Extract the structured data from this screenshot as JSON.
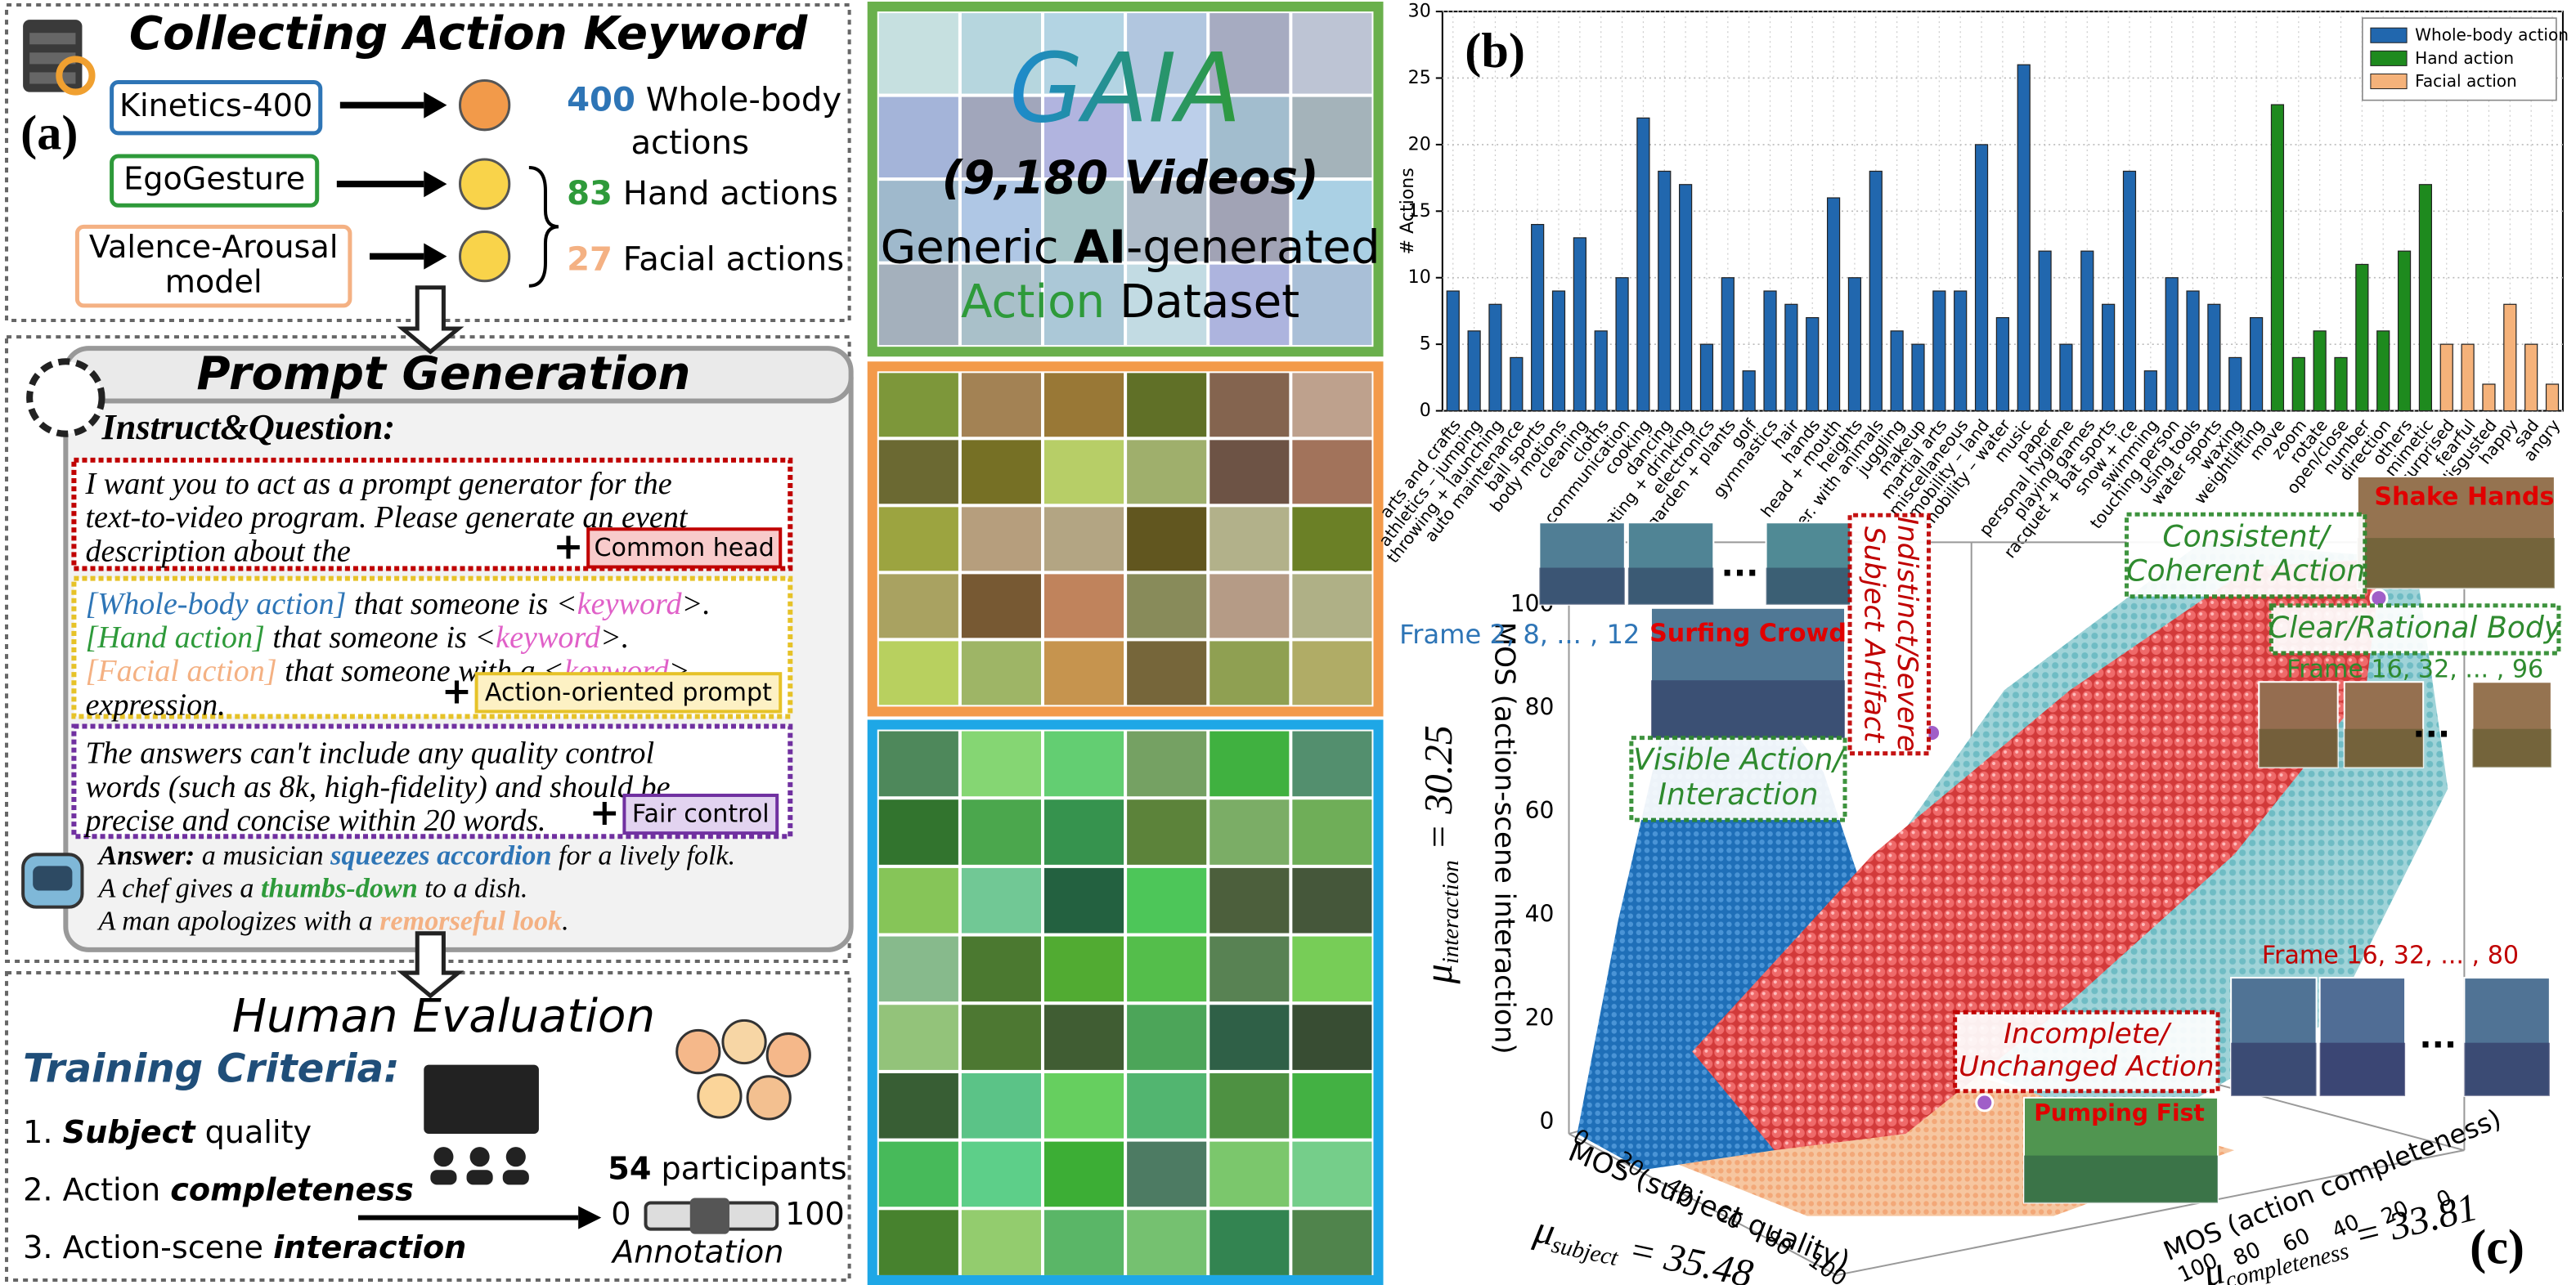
{
  "panel_a": {
    "label": "(a)",
    "collect": {
      "title": "Collecting Action Keyword",
      "colors": [
        "#2e75b6",
        "#2e9a3a",
        "#f4b183"
      ],
      "sources": [
        {
          "lines": [
            "Kinetics-400"
          ]
        },
        {
          "lines": [
            "EgoGesture"
          ]
        },
        {
          "lines": [
            "Valence-Arousal",
            "model"
          ]
        }
      ],
      "counts": [
        {
          "number": 400,
          "lines": [
            "Whole-body",
            "actions"
          ]
        },
        {
          "number": 83,
          "lines": [
            "Hand actions"
          ]
        },
        {
          "number": 27,
          "lines": [
            "Facial actions"
          ]
        }
      ]
    },
    "prompt": {
      "title": "Prompt Generation",
      "instruct": "Instruct&Question:",
      "blocks": [
        {
          "color": "#c00000",
          "tag_fill": "#f8cbcb",
          "tag": "Common head",
          "lines": [
            [
              {
                "text": "I want you to act as a prompt generator for the"
              }
            ],
            [
              {
                "text": "text-to-video program. Please generate an event"
              }
            ],
            [
              {
                "text": "description about the"
              }
            ]
          ]
        },
        {
          "color": "#e6c228",
          "tag_fill": "#fdf1c4",
          "tag": "Action-oriented prompt",
          "lines": [
            [
              {
                "text": "[Whole-body action]",
                "color": "#2e75b6"
              },
              {
                "text": " that someone is <"
              },
              {
                "text": "keyword",
                "color": "#e060c8"
              },
              {
                "text": ">."
              }
            ],
            [
              {
                "text": "[Hand action]",
                "color": "#2e9a3a"
              },
              {
                "text": " that someone is <"
              },
              {
                "text": "keyword",
                "color": "#e060c8"
              },
              {
                "text": ">."
              }
            ],
            [
              {
                "text": "[Facial action]",
                "color": "#f4b183"
              },
              {
                "text": " that someone with a <"
              },
              {
                "text": "keyword",
                "color": "#e060c8"
              },
              {
                "text": ">"
              }
            ],
            [
              {
                "text": "expression."
              }
            ]
          ]
        },
        {
          "color": "#7030a0",
          "tag_fill": "#e2d3f0",
          "tag": "Fair control",
          "lines": [
            [
              {
                "text": "The answers can't include any quality control"
              }
            ],
            [
              {
                "text": "words (such as 8k, high-fidelity) and should be"
              }
            ],
            [
              {
                "text": "precise and concise within 20 words."
              }
            ]
          ]
        }
      ],
      "answer": [
        [
          {
            "text": "Answer:",
            "bold": true
          },
          {
            "text": " a musician "
          },
          {
            "text": "squeezes accordion",
            "color": "#2e75b6",
            "bold": true
          },
          {
            "text": " for a lively folk."
          }
        ],
        [
          {
            "text": "A chef gives a "
          },
          {
            "text": "thumbs-down",
            "color": "#2e9a3a",
            "bold": true
          },
          {
            "text": " to a dish."
          }
        ],
        [
          {
            "text": "A man apologizes with a "
          },
          {
            "text": "remorseful look",
            "color": "#f4b183",
            "bold": true
          },
          {
            "text": "."
          }
        ]
      ]
    },
    "human": {
      "title": "Human Evaluation",
      "criteria_title": "Training Criteria:",
      "criteria": [
        [
          {
            "text": "1. "
          },
          {
            "text": "Subject",
            "bold": true,
            "italic": true
          },
          {
            "text": " quality"
          }
        ],
        [
          {
            "text": "2. Action "
          },
          {
            "text": "completeness",
            "bold": true,
            "italic": true
          }
        ],
        [
          {
            "text": "3. Action-scene "
          },
          {
            "text": "interaction",
            "bold": true,
            "italic": true
          }
        ]
      ],
      "participants": [
        {
          "text": "54",
          "bold": true
        },
        {
          "text": " participants"
        }
      ],
      "scale": [
        0,
        100
      ],
      "annotation": "Annotation"
    }
  },
  "dataset": {
    "name": "GAIA",
    "count": "(9,180 Videos)",
    "lines": [
      [
        {
          "text": "Generic "
        },
        {
          "text": "AI",
          "bold": true
        },
        {
          "text": "-generated"
        }
      ],
      [
        {
          "text": "Action",
          "color": "#2e9a3a"
        },
        {
          "text": " Dataset"
        }
      ]
    ]
  },
  "chart_data": {
    "type": "bar",
    "title": "(b)",
    "y_label": "# Actions",
    "categories": [
      "arts and crafts",
      "athletics – jumping",
      "throwing + launching",
      "auto maintenance",
      "ball sports",
      "body motions",
      "cleaning",
      "cloths",
      "communication",
      "cooking",
      "dancing",
      "eating + drinking",
      "electronics",
      "garden + plants",
      "golf",
      "gymnastics",
      "hair",
      "hands",
      "head + mouth",
      "heights",
      "inter. with animals",
      "juggling",
      "makeup",
      "martial arts",
      "miscellaneous",
      "mobility – land",
      "mobility – water",
      "music",
      "paper",
      "personal hygiene",
      "playing games",
      "racquet + bat sports",
      "snow + ice",
      "swimming",
      "touching person",
      "using tools",
      "water sports",
      "waxing",
      "weightlifting",
      "move",
      "zoom",
      "rotate",
      "open/close",
      "number",
      "direction",
      "others",
      "mimetic",
      "surprised",
      "fearful",
      "disgusted",
      "happy",
      "sad",
      "angry"
    ],
    "series": [
      {
        "name": "Whole-body action",
        "color": "#2167ae",
        "values": [
          9,
          6,
          8,
          4,
          14,
          9,
          13,
          6,
          10,
          22,
          18,
          17,
          5,
          10,
          3,
          9,
          8,
          7,
          16,
          10,
          18,
          6,
          5,
          9,
          9,
          20,
          7,
          26,
          12,
          5,
          12,
          8,
          18,
          3,
          10,
          9,
          8,
          4,
          7,
          null,
          null,
          null,
          null,
          null,
          null,
          null,
          null,
          null,
          null,
          null,
          null,
          null,
          null
        ]
      },
      {
        "name": "Hand action",
        "color": "#1e8a1e",
        "values": [
          null,
          null,
          null,
          null,
          null,
          null,
          null,
          null,
          null,
          null,
          null,
          null,
          null,
          null,
          null,
          null,
          null,
          null,
          null,
          null,
          null,
          null,
          null,
          null,
          null,
          null,
          null,
          null,
          null,
          null,
          null,
          null,
          null,
          null,
          null,
          null,
          null,
          null,
          null,
          23,
          4,
          6,
          4,
          11,
          6,
          12,
          17,
          null,
          null,
          null,
          null,
          null,
          null
        ]
      },
      {
        "name": "Facial action",
        "color": "#f5b27a",
        "values": [
          null,
          null,
          null,
          null,
          null,
          null,
          null,
          null,
          null,
          null,
          null,
          null,
          null,
          null,
          null,
          null,
          null,
          null,
          null,
          null,
          null,
          null,
          null,
          null,
          null,
          null,
          null,
          null,
          null,
          null,
          null,
          null,
          null,
          null,
          null,
          null,
          null,
          null,
          null,
          null,
          null,
          null,
          null,
          null,
          null,
          null,
          null,
          5,
          5,
          2,
          8,
          5,
          2
        ]
      }
    ],
    "ylim": [
      0,
      30
    ],
    "yticks": [
      0,
      5,
      10,
      15,
      20,
      25,
      30
    ],
    "grid": true,
    "legend": "upper right"
  },
  "panel_c": {
    "label": "(c)",
    "z_axis": {
      "title": "MOS (action-scene interaction)",
      "ticks": [
        0,
        20,
        40,
        60,
        80,
        100
      ],
      "symbol": "μ",
      "sub": "interaction",
      "value": " = 30.25"
    },
    "x_axis": {
      "title": "MOS (subject quality)",
      "ticks": [
        0,
        20,
        40,
        60,
        80,
        100
      ],
      "symbol": "μ",
      "sub": "subject",
      "value": " = 35.48"
    },
    "y_axis": {
      "title": "MOS (action completeness)",
      "ticks": [
        100,
        80,
        60,
        40,
        20,
        0
      ],
      "symbol": "μ",
      "sub": "completeness",
      "value": " = 33.81"
    },
    "annotations": [
      {
        "lines": [
          "Frame 2, 8, ... , 12"
        ],
        "color": "#2e75b6"
      },
      {
        "lines": [
          "Surfing Crowd"
        ],
        "color": "#e00000"
      },
      {
        "lines": [
          "Indistinct/Severe",
          "Subject Artifact"
        ],
        "color": "#c00000"
      },
      {
        "lines": [
          "Visible Action/",
          "Interaction"
        ],
        "color": "#2e8a2e"
      },
      {
        "lines": [
          "Consistent/",
          "Coherent Action"
        ],
        "color": "#2e8a2e"
      },
      {
        "lines": [
          "Clear/Rational Body"
        ],
        "color": "#2e8a2e"
      },
      {
        "lines": [
          "Frame 16, 32, ... , 96"
        ],
        "color": "#2e8a2e"
      },
      {
        "lines": [
          "Shake Hands"
        ],
        "color": "#e00000"
      },
      {
        "lines": [
          "Frame 16, 32, ... , 80"
        ],
        "color": "#c00000"
      },
      {
        "lines": [
          "Incomplete/",
          "Unchanged Action"
        ],
        "color": "#c00000"
      },
      {
        "lines": [
          "Pumping Fist"
        ],
        "color": "#e00000"
      }
    ],
    "ellipsis": "..."
  }
}
